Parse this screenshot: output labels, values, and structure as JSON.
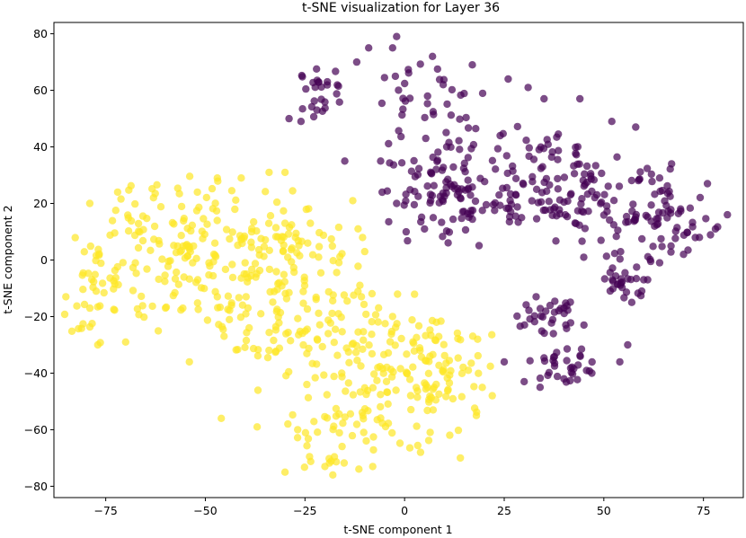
{
  "chart_data": {
    "type": "scatter",
    "title": "t-SNE visualization for Layer 36",
    "xlabel": "t-SNE component 1",
    "ylabel": "t-SNE component 2",
    "xlim": [
      -88,
      85
    ],
    "ylim": [
      -84,
      84
    ],
    "xticks": [
      -75,
      -50,
      -25,
      0,
      25,
      50,
      75
    ],
    "yticks": [
      -80,
      -60,
      -40,
      -20,
      0,
      20,
      40,
      60,
      80
    ],
    "xtick_labels": [
      "−75",
      "−50",
      "−25",
      "0",
      "25",
      "50",
      "75"
    ],
    "ytick_labels": [
      "−80",
      "−60",
      "−40",
      "−20",
      "0",
      "20",
      "40",
      "60",
      "80"
    ],
    "grid": false,
    "marker_alpha": 0.7,
    "clusters": [
      {
        "color": "#fde725",
        "regions": [
          {
            "cx": -55,
            "cy": 2,
            "rx": 27,
            "ry": 26,
            "n": 170
          },
          {
            "cx": -30,
            "cy": -8,
            "rx": 20,
            "ry": 34,
            "n": 150
          },
          {
            "cx": -5,
            "cy": -40,
            "rx": 22,
            "ry": 26,
            "n": 150
          },
          {
            "cx": 12,
            "cy": -42,
            "rx": 12,
            "ry": 20,
            "n": 40
          },
          {
            "cx": -18,
            "cy": -62,
            "rx": 12,
            "ry": 12,
            "n": 30
          },
          {
            "cx": -78,
            "cy": -12,
            "rx": 7,
            "ry": 18,
            "n": 30
          }
        ],
        "points": [
          [
            -85,
            -13
          ],
          [
            -79,
            20
          ],
          [
            -72,
            24
          ],
          [
            -63,
            22
          ],
          [
            -52,
            24
          ],
          [
            -47,
            29
          ],
          [
            -41,
            29
          ],
          [
            -34,
            31
          ],
          [
            -30,
            31
          ],
          [
            -13,
            21
          ],
          [
            -10,
            3
          ],
          [
            -47,
            -13
          ],
          [
            -39,
            -24
          ],
          [
            -54,
            -36
          ],
          [
            -46,
            -56
          ],
          [
            -37,
            -59
          ],
          [
            -30,
            -75
          ],
          [
            -20,
            -73
          ],
          [
            -18,
            -76
          ],
          [
            -8,
            -73
          ],
          [
            4,
            -68
          ],
          [
            14,
            -70
          ],
          [
            18,
            -55
          ],
          [
            22,
            -48
          ],
          [
            16,
            -39
          ],
          [
            8,
            -22
          ],
          [
            -30,
            13
          ],
          [
            -60,
            -17
          ],
          [
            -70,
            -29
          ],
          [
            -77,
            -30
          ]
        ]
      },
      {
        "color": "#440154",
        "regions": [
          {
            "cx": 5,
            "cy": 55,
            "rx": 14,
            "ry": 15,
            "n": 40
          },
          {
            "cx": -22,
            "cy": 60,
            "rx": 7,
            "ry": 10,
            "n": 25
          },
          {
            "cx": 12,
            "cy": 23,
            "rx": 17,
            "ry": 18,
            "n": 110
          },
          {
            "cx": 35,
            "cy": 28,
            "rx": 15,
            "ry": 20,
            "n": 90
          },
          {
            "cx": 55,
            "cy": 17,
            "rx": 15,
            "ry": 20,
            "n": 80
          },
          {
            "cx": 70,
            "cy": 12,
            "rx": 9,
            "ry": 10,
            "n": 25
          },
          {
            "cx": 55,
            "cy": -8,
            "rx": 6,
            "ry": 6,
            "n": 25
          },
          {
            "cx": 36,
            "cy": -20,
            "rx": 8,
            "ry": 7,
            "n": 30
          },
          {
            "cx": 40,
            "cy": -37,
            "rx": 8,
            "ry": 6,
            "n": 30
          }
        ],
        "points": [
          [
            -29,
            50
          ],
          [
            -26,
            49
          ],
          [
            -22,
            53
          ],
          [
            -12,
            70
          ],
          [
            -9,
            75
          ],
          [
            -3,
            75
          ],
          [
            -2,
            79
          ],
          [
            7,
            72
          ],
          [
            17,
            69
          ],
          [
            26,
            64
          ],
          [
            31,
            61
          ],
          [
            35,
            57
          ],
          [
            44,
            57
          ],
          [
            52,
            49
          ],
          [
            58,
            47
          ],
          [
            64,
            29
          ],
          [
            67,
            34
          ],
          [
            76,
            27
          ],
          [
            81,
            16
          ],
          [
            78,
            11
          ],
          [
            74,
            8
          ],
          [
            70,
            2
          ],
          [
            64,
            -1
          ],
          [
            60,
            -7
          ],
          [
            57,
            -15
          ],
          [
            45,
            -23
          ],
          [
            40,
            -17
          ],
          [
            33,
            -13
          ],
          [
            25,
            -36
          ],
          [
            30,
            -43
          ],
          [
            34,
            -45
          ],
          [
            40,
            -42
          ],
          [
            47,
            -40
          ],
          [
            54,
            -36
          ],
          [
            56,
            -30
          ],
          [
            61,
            -7
          ],
          [
            5,
            11
          ],
          [
            -2,
            20
          ],
          [
            -6,
            35
          ],
          [
            -15,
            35
          ]
        ]
      }
    ]
  }
}
